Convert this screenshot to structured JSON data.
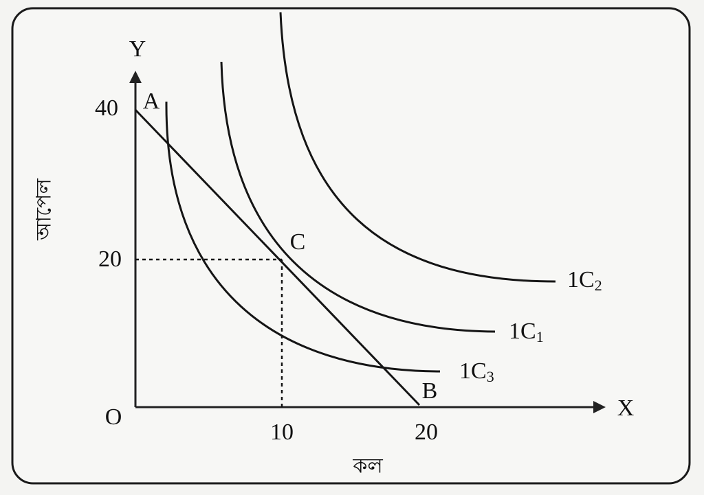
{
  "axes": {
    "y_label": "Y",
    "x_label": "X",
    "origin": "O",
    "y_title": "আপেল",
    "x_title": "কল",
    "y_ticks": [
      "40",
      "20"
    ],
    "x_ticks": [
      "10",
      "20"
    ]
  },
  "points": {
    "a": "A",
    "b": "B",
    "c": "C"
  },
  "curves": [
    {
      "label": "1C",
      "subscript": "2"
    },
    {
      "label": "1C",
      "subscript": "1"
    },
    {
      "label": "1C",
      "subscript": "3"
    }
  ]
}
